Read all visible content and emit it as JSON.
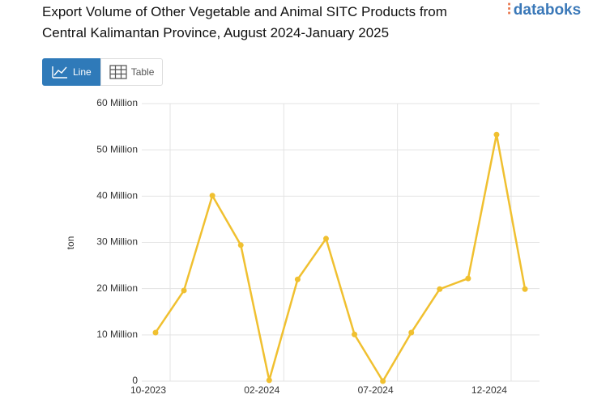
{
  "header": {
    "logo": "databoks",
    "buttons": [
      "Line",
      "Table"
    ]
  },
  "chart_data": {
    "type": "line",
    "title": "Export Volume of Other Vegetable and Animal SITC Products from Central Kalimantan Province, August 2024-January 2025",
    "ylabel": "ton",
    "categories": [
      "10-2023",
      null,
      null,
      null,
      "02-2024",
      null,
      null,
      null,
      "07-2024",
      null,
      null,
      null,
      "12-2024",
      null
    ],
    "series": [
      {
        "name": "ton",
        "color": "#f0c030",
        "values": [
          10.5,
          19.6,
          40.1,
          29.4,
          0.2,
          22.0,
          30.8,
          10.1,
          0,
          10.5,
          19.9,
          22.2,
          53.3,
          19.9
        ]
      }
    ],
    "ylim": [
      0,
      60
    ],
    "yticks": [
      0,
      {
        "value": 10,
        "label": "10 Million"
      },
      {
        "value": 20,
        "label": "20 Million"
      },
      {
        "value": 30,
        "label": "30 Million"
      },
      {
        "value": 40,
        "label": "40 Million"
      },
      {
        "value": 50,
        "label": "50 Million"
      },
      {
        "value": 60,
        "label": "60 Million"
      }
    ],
    "grid": true
  }
}
